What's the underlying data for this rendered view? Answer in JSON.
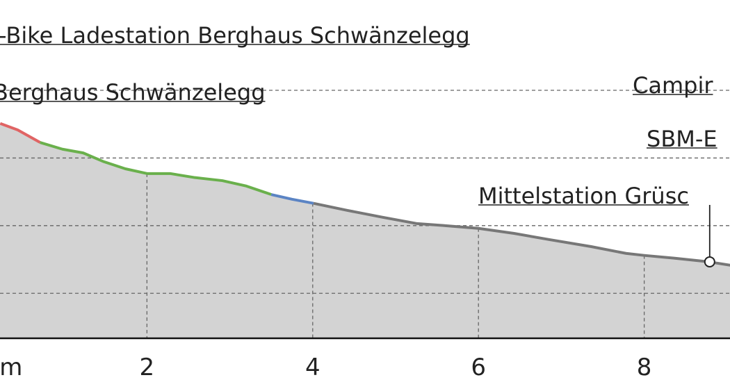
{
  "chart_data": {
    "type": "line",
    "xlim": [
      0.227,
      9.035
    ],
    "ylim": [
      867,
      1867
    ],
    "xticks": [
      {
        "value": 0,
        "label": "km"
      },
      2,
      4,
      6,
      8
    ],
    "yticks": [
      1000,
      1200,
      1400,
      1600
    ],
    "grid": true,
    "fill_color": "#d3d3d3",
    "series": [
      {
        "color": "#e06464",
        "x": [
          0.23,
          0.44,
          0.71
        ],
        "values": [
          1502,
          1483,
          1446
        ]
      },
      {
        "color": "#6ab04c",
        "x": [
          0.71,
          0.98,
          1.23,
          1.48,
          1.74,
          2.0,
          2.28,
          2.58,
          2.91,
          3.2,
          3.5
        ],
        "values": [
          1446,
          1426,
          1415,
          1389,
          1368,
          1354,
          1354,
          1342,
          1333,
          1317,
          1292
        ]
      },
      {
        "color": "#5b84c4",
        "x": [
          3.5,
          3.75,
          4.01
        ],
        "values": [
          1292,
          1278,
          1266
        ]
      },
      {
        "color": "#777777",
        "x": [
          4.01,
          4.42,
          4.84,
          5.26,
          5.6,
          6.0,
          6.43,
          6.85,
          7.36,
          7.78,
          8.0,
          8.36,
          8.78,
          9.04
        ],
        "values": [
          1266,
          1245,
          1225,
          1206,
          1200,
          1192,
          1177,
          1159,
          1138,
          1118,
          1112,
          1104,
          1093,
          1083
        ]
      }
    ],
    "annotations": [
      {
        "text": "-Bike Ladestation Berghaus Schwänzelegg"
      },
      {
        "text": "Berghaus Schwänzelegg"
      },
      {
        "text": "Campir"
      },
      {
        "text": "SBM-E"
      },
      {
        "text": "Mittelstation Grüsc",
        "x": 8.79,
        "y": 1093
      }
    ]
  }
}
